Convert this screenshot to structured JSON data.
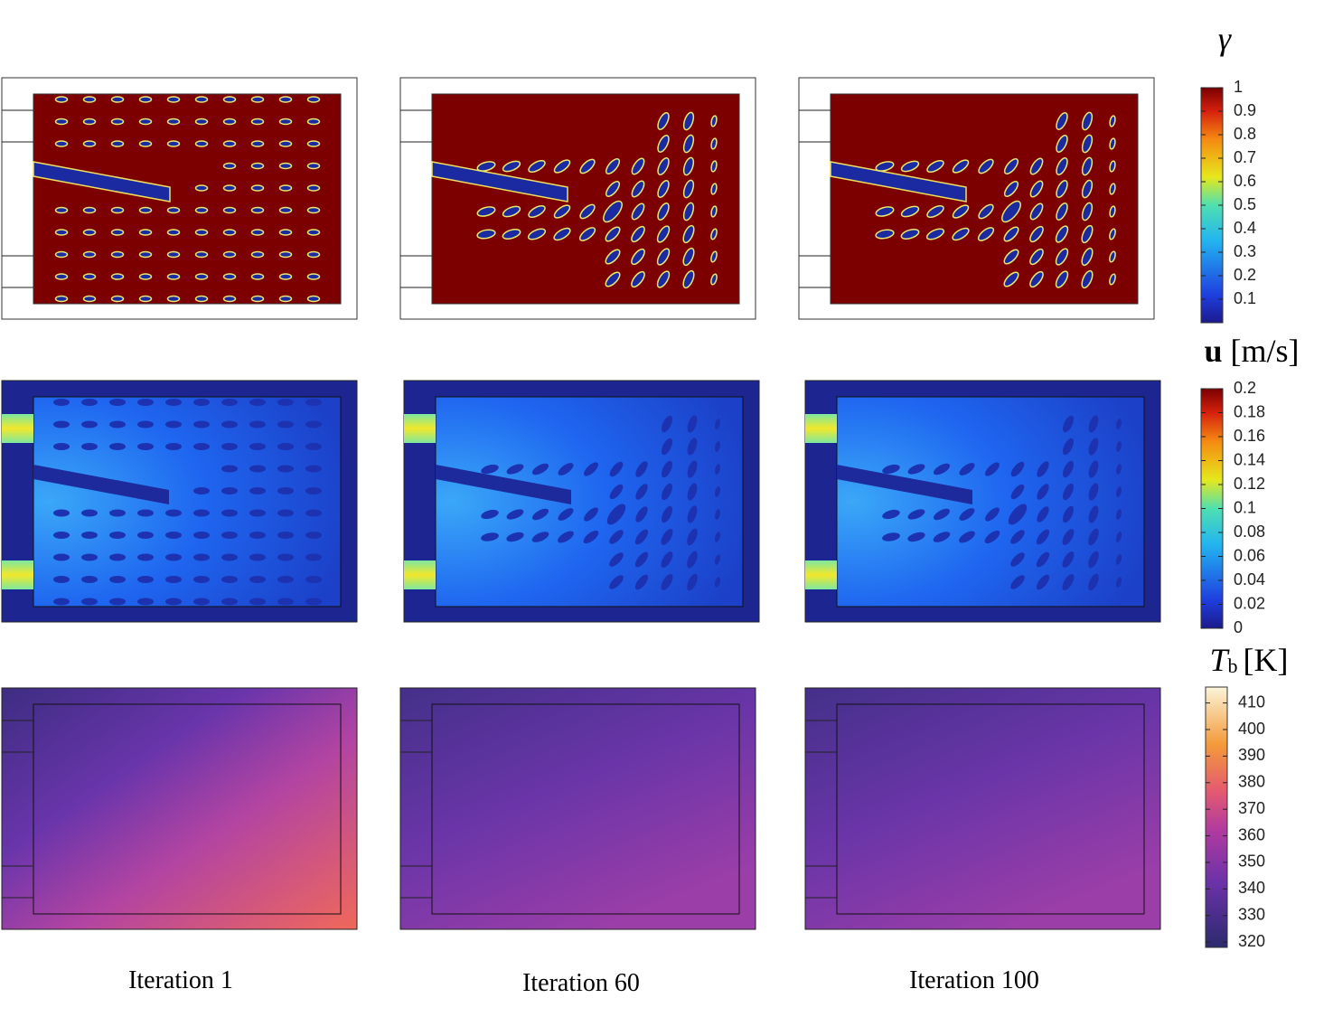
{
  "columns": [
    "Iteration 1",
    "Iteration 60",
    "Iteration 100"
  ],
  "colorbars": [
    {
      "symbol": "γ",
      "range": [
        0,
        1
      ],
      "ticks": [
        0.1,
        0.2,
        0.3,
        0.4,
        0.5,
        0.6,
        0.7,
        0.8,
        0.9,
        1
      ]
    },
    {
      "symbol": "u",
      "unit": "[m/s]",
      "range": [
        0,
        0.2
      ],
      "ticks": [
        0,
        0.02,
        0.04,
        0.06,
        0.08,
        0.1,
        0.12,
        0.14,
        0.16,
        0.18,
        0.2
      ]
    },
    {
      "symbol": "T",
      "subscript": "b",
      "unit": "[K]",
      "range": [
        318,
        416
      ],
      "ticks": [
        320,
        330,
        340,
        350,
        360,
        370,
        380,
        390,
        400,
        410
      ]
    }
  ]
}
